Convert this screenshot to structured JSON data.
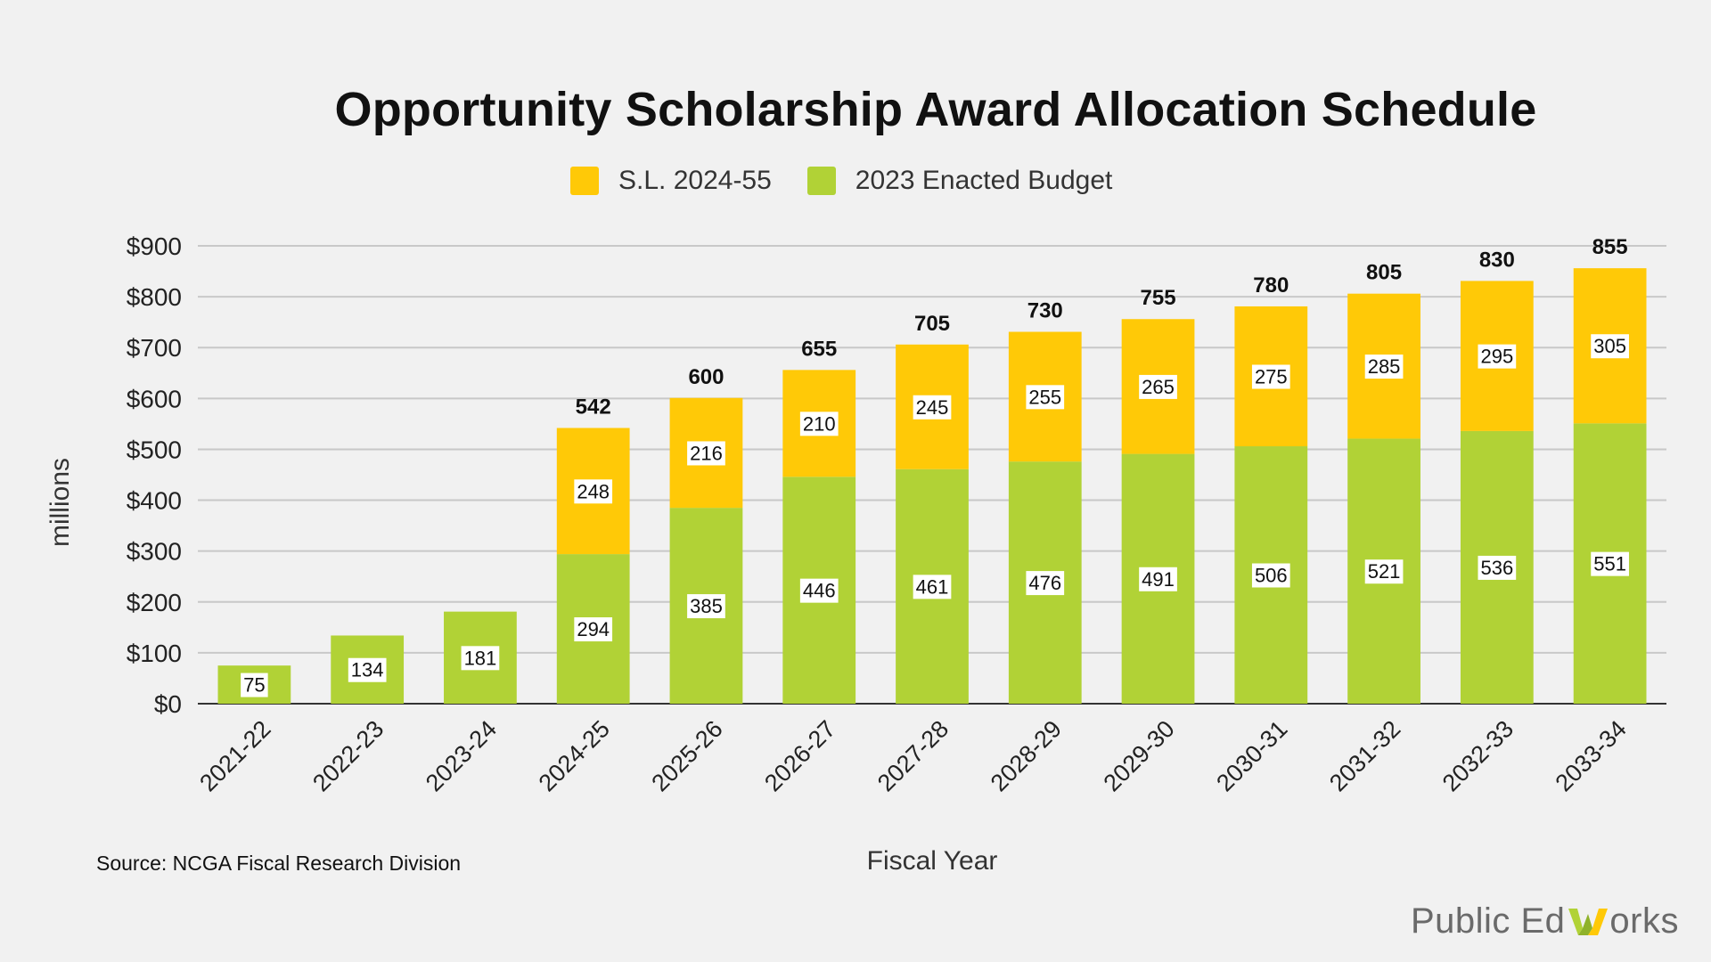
{
  "title": "Opportunity Scholarship Award Allocation Schedule",
  "legend": [
    {
      "label": "S.L. 2024-55",
      "color": "#ffc907"
    },
    {
      "label": "2023 Enacted Budget",
      "color": "#b1d236"
    }
  ],
  "source": "Source: NCGA Fiscal Research Division",
  "brand": {
    "prefix": "Public Ed ",
    "suffix": "orks",
    "letter": "W"
  },
  "chart_data": {
    "type": "bar",
    "stacked": true,
    "title": "Opportunity Scholarship Award Allocation Schedule",
    "xlabel": "Fiscal Year",
    "ylabel": "millions",
    "ylim": [
      0,
      900
    ],
    "yticks": [
      0,
      100,
      200,
      300,
      400,
      500,
      600,
      700,
      800,
      900
    ],
    "ytick_labels": [
      "$0",
      "$100",
      "$200",
      "$300",
      "$400",
      "$500",
      "$600",
      "$700",
      "$800",
      "$900"
    ],
    "grid": true,
    "legend_position": "top",
    "categories": [
      "2021-22",
      "2022-23",
      "2023-24",
      "2024-25",
      "2025-26",
      "2026-27",
      "2027-28",
      "2028-29",
      "2029-30",
      "2030-31",
      "2031-32",
      "2032-33",
      "2033-34"
    ],
    "series": [
      {
        "name": "2023 Enacted Budget",
        "color": "#b1d236",
        "values": [
          75,
          134,
          181,
          294,
          385,
          446,
          461,
          476,
          491,
          506,
          521,
          536,
          551
        ]
      },
      {
        "name": "S.L. 2024-55",
        "color": "#ffc907",
        "values": [
          null,
          null,
          null,
          248,
          216,
          210,
          245,
          255,
          265,
          275,
          285,
          295,
          305
        ]
      }
    ],
    "totals": [
      null,
      null,
      null,
      542,
      600,
      655,
      705,
      730,
      755,
      780,
      805,
      830,
      855
    ]
  }
}
